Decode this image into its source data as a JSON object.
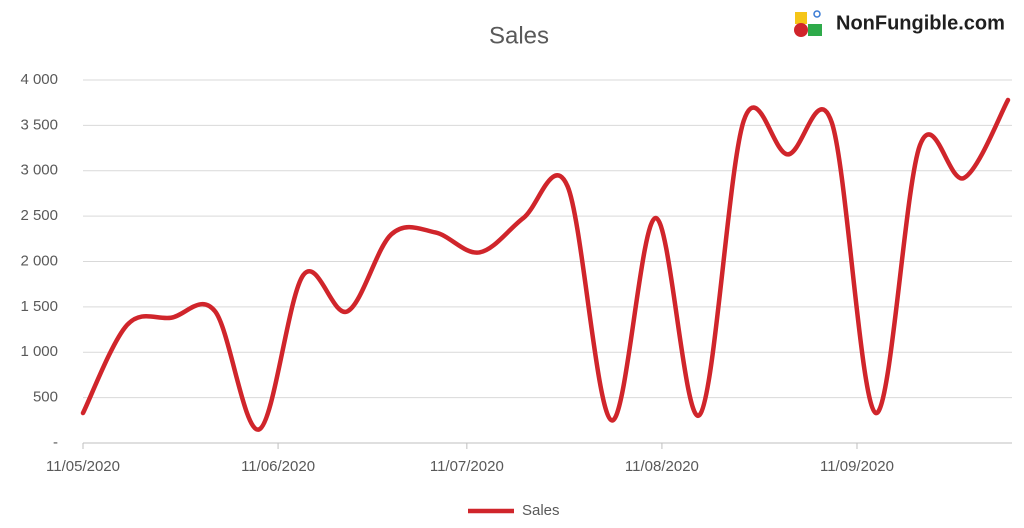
{
  "brand": "NonFungible.com",
  "chart_data": {
    "type": "line",
    "title": "Sales",
    "x": [
      "2020-05-11",
      "2020-05-18",
      "2020-05-25",
      "2020-06-01",
      "2020-06-08",
      "2020-06-15",
      "2020-06-22",
      "2020-06-29",
      "2020-07-06",
      "2020-07-13",
      "2020-07-20",
      "2020-07-27",
      "2020-08-03",
      "2020-08-10",
      "2020-08-17",
      "2020-08-24",
      "2020-08-31",
      "2020-09-07",
      "2020-09-14",
      "2020-09-21",
      "2020-09-28",
      "2020-10-05"
    ],
    "series": [
      {
        "name": "Sales",
        "color": "#d0252b",
        "values": [
          330,
          1300,
          1380,
          1450,
          150,
          1850,
          1450,
          2300,
          2320,
          2100,
          2480,
          2830,
          250,
          2480,
          310,
          3550,
          3180,
          3530,
          330,
          3280,
          2920,
          3780
        ]
      }
    ],
    "xlim": [
      "2020-05-11",
      "2020-10-05"
    ],
    "xticks": [
      {
        "value": "2020-05-11",
        "label": "11/05/2020"
      },
      {
        "value": "2020-06-11",
        "label": "11/06/2020"
      },
      {
        "value": "2020-07-11",
        "label": "11/07/2020"
      },
      {
        "value": "2020-08-11",
        "label": "11/08/2020"
      },
      {
        "value": "2020-09-11",
        "label": "11/09/2020"
      }
    ],
    "ylim": [
      0,
      4000
    ],
    "yticks": [
      {
        "value": 0,
        "label": "-"
      },
      {
        "value": 500,
        "label": "500"
      },
      {
        "value": 1000,
        "label": "1 000"
      },
      {
        "value": 1500,
        "label": "1 500"
      },
      {
        "value": 2000,
        "label": "2 000"
      },
      {
        "value": 2500,
        "label": "2 500"
      },
      {
        "value": 3000,
        "label": "3 000"
      },
      {
        "value": 3500,
        "label": "3 500"
      },
      {
        "value": 4000,
        "label": "4 000"
      }
    ],
    "grid": true,
    "legend": "bottom"
  }
}
